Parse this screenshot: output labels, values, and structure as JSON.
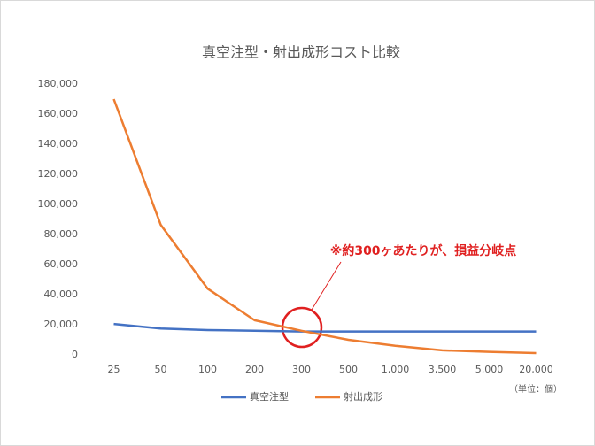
{
  "chart_data": {
    "type": "line",
    "title": "真空注型・射出成形コスト比較",
    "annotation": "※約300ヶあたりが、損益分岐点",
    "unit_label": "（単位：個）",
    "categories": [
      "25",
      "50",
      "100",
      "200",
      "300",
      "500",
      "1,000",
      "3,500",
      "5,000",
      "20,000"
    ],
    "series": [
      {
        "name": "真空注型",
        "color": "#4472c4",
        "values": [
          20500,
          17500,
          16500,
          16000,
          15500,
          15500,
          15500,
          15500,
          15500,
          15500
        ]
      },
      {
        "name": "射出成形",
        "color": "#ed7d31",
        "values": [
          170000,
          86500,
          44000,
          23000,
          16000,
          10000,
          6000,
          3000,
          2000,
          1200
        ]
      }
    ],
    "ylim": [
      0,
      180000
    ],
    "yticks": [
      0,
      {
        "value": 20000,
        "label": "20,000"
      },
      {
        "value": 40000,
        "label": "40,000"
      },
      {
        "value": 60000,
        "label": "60,000"
      },
      {
        "value": 80000,
        "label": "80,000"
      },
      {
        "value": 100000,
        "label": "100,000"
      },
      {
        "value": 120000,
        "label": "120,000"
      },
      {
        "value": 140000,
        "label": "140,000"
      },
      {
        "value": 160000,
        "label": "160,000"
      },
      {
        "value": 180000,
        "label": "180,000"
      }
    ],
    "grid": false
  }
}
